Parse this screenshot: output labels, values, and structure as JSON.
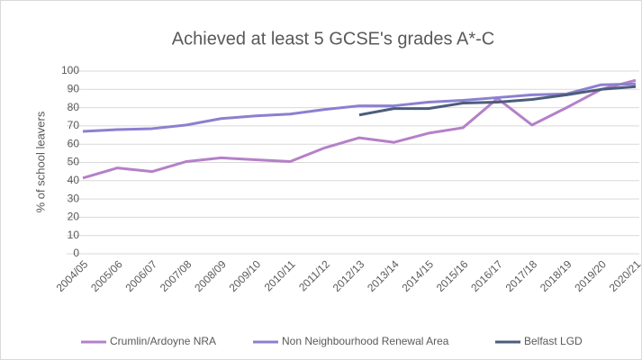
{
  "chart_data": {
    "type": "line",
    "title": "Achieved at least 5 GCSE's grades A*-C",
    "y_label": "% of school leavers",
    "categories": [
      "2004/05",
      "2005/06",
      "2006/07",
      "2007/08",
      "2008/09",
      "2009/10",
      "2010/11",
      "2011/12",
      "2012/13",
      "2013/14",
      "2014/15",
      "2015/16",
      "2016/17",
      "2017/18",
      "2018/19",
      "2019/20",
      "2020/21"
    ],
    "series": [
      {
        "name": "Crumlin/Ardoyne NRA",
        "color": "#b580c8",
        "values": [
          41.5,
          47,
          45,
          50.5,
          52.5,
          51.5,
          50.5,
          58,
          63.5,
          61,
          66,
          69,
          85,
          70.5,
          80,
          90,
          95
        ]
      },
      {
        "name": "Non Neighbourhood Renewal Area",
        "color": "#8b80d0",
        "values": [
          67,
          68,
          68.5,
          70.5,
          74,
          75.5,
          76.5,
          79,
          81,
          81,
          83,
          84,
          85.5,
          87,
          87.5,
          92.5,
          93
        ]
      },
      {
        "name": "Belfast LGD",
        "color": "#4b5d7b",
        "values": [
          null,
          null,
          null,
          null,
          null,
          null,
          null,
          null,
          76,
          79.5,
          79.5,
          82.5,
          83,
          84.5,
          87,
          90,
          91.5
        ]
      }
    ],
    "ylim": [
      0,
      100
    ],
    "yticks": [
      0,
      10,
      20,
      30,
      40,
      50,
      60,
      70,
      80,
      90,
      100
    ],
    "grid": true,
    "legend": "bottom"
  }
}
